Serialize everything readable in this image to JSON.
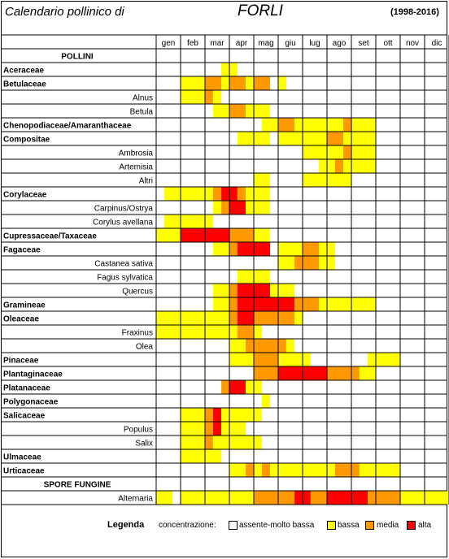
{
  "header": {
    "title": "Calendario pollinico di",
    "city": "FORLI",
    "years": "(1998-2016)"
  },
  "legend": {
    "title": "Legenda",
    "label": "concentrazione:",
    "levels": [
      {
        "label": "assente-molto bassa",
        "color": "#FFFFFF"
      },
      {
        "label": "bassa",
        "color": "#FFFF00"
      },
      {
        "label": "media",
        "color": "#FF9900"
      },
      {
        "label": "alta",
        "color": "#FF0000"
      }
    ]
  },
  "chart_data": {
    "type": "heatmap",
    "x_unit": "month",
    "months": [
      "gen",
      "feb",
      "mar",
      "apr",
      "mag",
      "giu",
      "lug",
      "ago",
      "set",
      "ott",
      "nov",
      "dic"
    ],
    "level_codes": {
      "0": "assente-molto bassa",
      "1": "bassa",
      "2": "media",
      "3": "alta"
    },
    "colors": [
      "#FFFFFF",
      "#FFFF00",
      "#FF9900",
      "#FF0000"
    ],
    "rows": [
      {
        "label": "POLLINI",
        "kind": "section",
        "segments": []
      },
      {
        "label": "Aceraceae",
        "kind": "family",
        "segments": [
          [
            2.67,
            3.33,
            1
          ]
        ]
      },
      {
        "label": "Betulaceae",
        "kind": "family",
        "segments": [
          [
            1,
            2,
            1
          ],
          [
            2,
            2.67,
            2
          ],
          [
            2.67,
            3,
            1
          ],
          [
            3,
            3.67,
            2
          ],
          [
            3.67,
            4,
            1
          ],
          [
            4,
            4.67,
            2
          ],
          [
            5,
            5.33,
            1
          ]
        ]
      },
      {
        "label": "Alnus",
        "kind": "species",
        "segments": [
          [
            1,
            2,
            1
          ],
          [
            2,
            2.33,
            2
          ],
          [
            2.33,
            2.67,
            1
          ]
        ]
      },
      {
        "label": "Betula",
        "kind": "species",
        "segments": [
          [
            2.33,
            3,
            1
          ],
          [
            3,
            3.67,
            2
          ],
          [
            3.67,
            4.67,
            1
          ]
        ]
      },
      {
        "label": "Chenopodiaceae/Amaranthaceae",
        "kind": "family",
        "segments": [
          [
            4.33,
            5,
            1
          ],
          [
            5,
            5.67,
            2
          ],
          [
            5.67,
            7.67,
            1
          ],
          [
            7.67,
            8,
            2
          ],
          [
            8,
            9,
            1
          ]
        ]
      },
      {
        "label": "Compositae",
        "kind": "family",
        "segments": [
          [
            3.33,
            4.67,
            1
          ],
          [
            5,
            6,
            1
          ],
          [
            6,
            7,
            1
          ],
          [
            7,
            7.67,
            2
          ],
          [
            7.67,
            8,
            1
          ],
          [
            8,
            9,
            1
          ]
        ]
      },
      {
        "label": "Ambrosia",
        "kind": "species",
        "segments": [
          [
            6,
            7.67,
            1
          ],
          [
            7.67,
            8,
            2
          ],
          [
            8,
            9,
            1
          ]
        ]
      },
      {
        "label": "Artemisia",
        "kind": "species",
        "segments": [
          [
            6.67,
            7.33,
            1
          ],
          [
            7.33,
            7.67,
            2
          ],
          [
            7.67,
            9,
            1
          ]
        ]
      },
      {
        "label": "Altri",
        "kind": "species",
        "segments": [
          [
            4,
            4.67,
            1
          ],
          [
            6,
            8,
            1
          ]
        ]
      },
      {
        "label": "Corylaceae",
        "kind": "family",
        "segments": [
          [
            0.33,
            2.33,
            1
          ],
          [
            2.33,
            2.67,
            2
          ],
          [
            2.67,
            3.33,
            3
          ],
          [
            3.33,
            3.67,
            2
          ],
          [
            3.67,
            4.67,
            1
          ]
        ]
      },
      {
        "label": "Carpinus/Ostrya",
        "kind": "species",
        "segments": [
          [
            2.33,
            2.67,
            1
          ],
          [
            2.67,
            3,
            2
          ],
          [
            3,
            3.67,
            3
          ],
          [
            3.67,
            4.67,
            1
          ]
        ]
      },
      {
        "label": "Corylus avellana",
        "kind": "species",
        "segments": [
          [
            0.33,
            2.33,
            1
          ]
        ]
      },
      {
        "label": "Cupressaceae/Taxaceae",
        "kind": "family",
        "segments": [
          [
            0,
            1,
            1
          ],
          [
            1,
            3,
            3
          ],
          [
            3,
            4,
            2
          ],
          [
            4,
            4.67,
            1
          ]
        ]
      },
      {
        "label": "Fagaceae",
        "kind": "family",
        "segments": [
          [
            2.33,
            3,
            1
          ],
          [
            3,
            3.33,
            2
          ],
          [
            3.33,
            4.67,
            3
          ],
          [
            5,
            6,
            1
          ],
          [
            6,
            6.67,
            2
          ],
          [
            6.67,
            7.33,
            1
          ]
        ]
      },
      {
        "label": "Castanea sativa",
        "kind": "species",
        "segments": [
          [
            5,
            5.67,
            1
          ],
          [
            5.67,
            6.67,
            2
          ],
          [
            6.67,
            7.33,
            1
          ]
        ]
      },
      {
        "label": "Fagus sylvatica",
        "kind": "species",
        "segments": [
          [
            3.33,
            4.67,
            1
          ]
        ]
      },
      {
        "label": "Quercus",
        "kind": "species",
        "segments": [
          [
            2.33,
            3,
            1
          ],
          [
            3,
            3.33,
            2
          ],
          [
            3.33,
            4.67,
            3
          ],
          [
            4.67,
            5.67,
            1
          ]
        ]
      },
      {
        "label": "Gramineae",
        "kind": "family",
        "segments": [
          [
            2.33,
            3,
            1
          ],
          [
            3,
            3.33,
            2
          ],
          [
            3.33,
            5.67,
            3
          ],
          [
            5.67,
            6.67,
            2
          ],
          [
            6.67,
            9,
            1
          ]
        ]
      },
      {
        "label": "Oleaceae",
        "kind": "family",
        "segments": [
          [
            0,
            3,
            1
          ],
          [
            3,
            3.33,
            2
          ],
          [
            3.33,
            4,
            3
          ],
          [
            4,
            5.67,
            2
          ],
          [
            5.67,
            6,
            1
          ]
        ]
      },
      {
        "label": "Fraxinus",
        "kind": "species",
        "segments": [
          [
            0,
            3.33,
            1
          ],
          [
            3.33,
            4,
            2
          ],
          [
            4,
            4.33,
            1
          ]
        ]
      },
      {
        "label": "Olea",
        "kind": "species",
        "segments": [
          [
            3,
            3.67,
            1
          ],
          [
            3.67,
            5.33,
            2
          ],
          [
            5.33,
            5.67,
            1
          ]
        ]
      },
      {
        "label": "Pinaceae",
        "kind": "family",
        "segments": [
          [
            3,
            4,
            1
          ],
          [
            4,
            5,
            2
          ],
          [
            5,
            6.33,
            1
          ],
          [
            8.67,
            10,
            1
          ]
        ]
      },
      {
        "label": "Plantaginaceae",
        "kind": "family",
        "segments": [
          [
            4,
            5,
            2
          ],
          [
            5,
            7,
            3
          ],
          [
            7,
            8.33,
            2
          ],
          [
            8.33,
            9,
            1
          ]
        ]
      },
      {
        "label": "Platanaceae",
        "kind": "family",
        "segments": [
          [
            2.67,
            3,
            2
          ],
          [
            3,
            3.67,
            3
          ],
          [
            3.67,
            4.33,
            1
          ]
        ]
      },
      {
        "label": "Polygonaceae",
        "kind": "family",
        "segments": [
          [
            4.33,
            4.67,
            1
          ]
        ]
      },
      {
        "label": "Salicaceae",
        "kind": "family",
        "segments": [
          [
            1,
            2,
            1
          ],
          [
            2,
            2.33,
            2
          ],
          [
            2.33,
            2.67,
            3
          ],
          [
            2.67,
            4.33,
            1
          ]
        ]
      },
      {
        "label": "Populus",
        "kind": "species",
        "segments": [
          [
            1,
            2,
            1
          ],
          [
            2,
            2.33,
            2
          ],
          [
            2.33,
            2.67,
            3
          ],
          [
            2.67,
            3.67,
            1
          ]
        ]
      },
      {
        "label": "Salix",
        "kind": "species",
        "segments": [
          [
            1,
            2,
            1
          ],
          [
            2,
            2.33,
            2
          ],
          [
            2.33,
            4.33,
            1
          ]
        ]
      },
      {
        "label": "Ulmaceae",
        "kind": "family",
        "segments": [
          [
            1,
            2.67,
            1
          ]
        ]
      },
      {
        "label": "Urticaceae",
        "kind": "family",
        "segments": [
          [
            3,
            3.67,
            1
          ],
          [
            3.67,
            4,
            2
          ],
          [
            4,
            4.33,
            1
          ],
          [
            4.33,
            4.67,
            2
          ],
          [
            4.67,
            7.33,
            1
          ],
          [
            7.33,
            8.33,
            2
          ],
          [
            8.33,
            10,
            1
          ]
        ]
      },
      {
        "label": "SPORE FUNGINE",
        "kind": "section",
        "segments": []
      },
      {
        "label": "Alternaria",
        "kind": "species",
        "segments": [
          [
            0,
            0.67,
            1
          ],
          [
            1,
            4,
            1
          ],
          [
            4,
            5.67,
            2
          ],
          [
            5.67,
            6.33,
            3
          ],
          [
            6.33,
            7,
            2
          ],
          [
            7,
            8.67,
            3
          ],
          [
            8.67,
            10,
            2
          ],
          [
            10,
            12,
            1
          ]
        ]
      }
    ]
  }
}
